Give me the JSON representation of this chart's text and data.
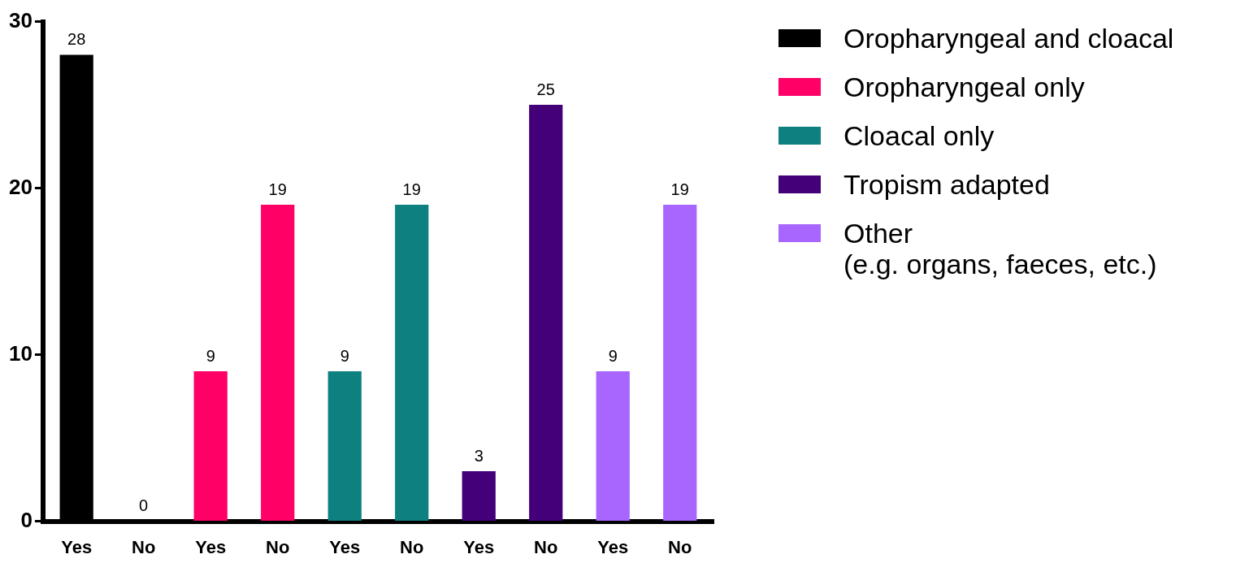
{
  "chart_data": {
    "type": "bar",
    "categories": [
      "Yes",
      "No",
      "Yes",
      "No",
      "Yes",
      "No",
      "Yes",
      "No",
      "Yes",
      "No"
    ],
    "series": [
      {
        "name": "Oropharyngeal and cloacal",
        "color": "#000000",
        "values": [
          28,
          0,
          null,
          null,
          null,
          null,
          null,
          null,
          null,
          null
        ]
      },
      {
        "name": "Oropharyngeal only",
        "color": "#ff0066",
        "values": [
          null,
          null,
          9,
          19,
          null,
          null,
          null,
          null,
          null,
          null
        ]
      },
      {
        "name": "Cloacal only",
        "color": "#0f8080",
        "values": [
          null,
          null,
          null,
          null,
          9,
          19,
          null,
          null,
          null,
          null
        ]
      },
      {
        "name": "Tropism adapted",
        "color": "#430079",
        "values": [
          null,
          null,
          null,
          null,
          null,
          null,
          3,
          25,
          null,
          null
        ]
      },
      {
        "name": "Other\n(e.g. organs, faeces, etc.)",
        "color": "#a866ff",
        "values": [
          null,
          null,
          null,
          null,
          null,
          null,
          null,
          null,
          9,
          19
        ]
      }
    ],
    "ylim": [
      0,
      30
    ],
    "yticks": [
      0,
      10,
      20,
      30
    ],
    "grid": false,
    "legend": "right",
    "data_labels": true
  }
}
